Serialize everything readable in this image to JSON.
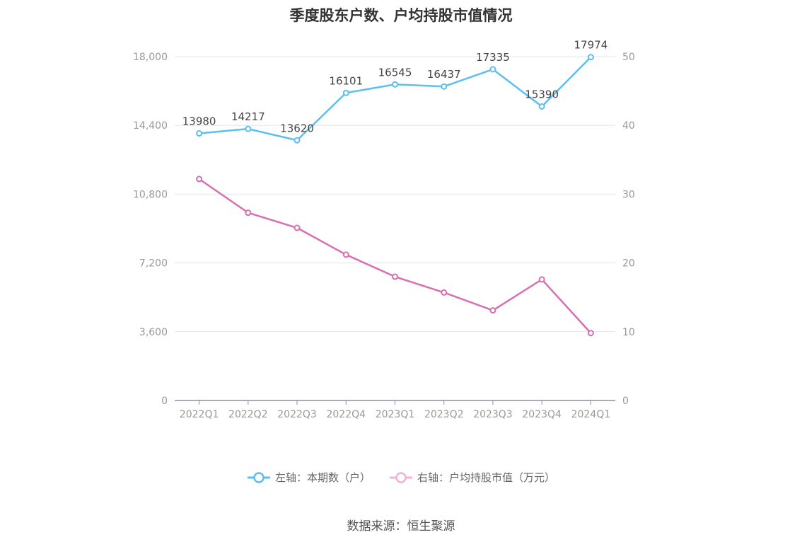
{
  "title": "季度股东户数、户均持股市值情况",
  "legend": {
    "left_label": "左轴：本期数（户）",
    "right_label": "右轴：户均持股市值（万元）"
  },
  "source": "数据来源：恒生聚源",
  "colors": {
    "left_series": "#5bbfef",
    "right_series": "#d86fb1",
    "right_legend": "#eeb3d6",
    "grid": "#e3e6f0",
    "axis": "#8e8ea8",
    "tick_text": "#999999",
    "data_label": "#444444"
  },
  "chart_data": {
    "type": "line",
    "categories": [
      "2022Q1",
      "2022Q2",
      "2022Q3",
      "2022Q4",
      "2023Q1",
      "2023Q2",
      "2023Q3",
      "2023Q4",
      "2024Q1"
    ],
    "series": [
      {
        "name": "左轴：本期数（户）",
        "axis": "left",
        "values": [
          13980,
          14217,
          13620,
          16101,
          16545,
          16437,
          17335,
          15390,
          17974
        ],
        "data_labels": true
      },
      {
        "name": "右轴：户均持股市值（万元）",
        "axis": "right",
        "values": [
          32.2,
          27.3,
          25.1,
          21.2,
          18.0,
          15.7,
          13.1,
          17.6,
          9.8
        ],
        "data_labels": false
      }
    ],
    "y_left": {
      "min": 0,
      "max": 18000,
      "ticks": [
        0,
        3600,
        7200,
        10800,
        14400,
        18000
      ],
      "tick_labels": [
        "0",
        "3,600",
        "7,200",
        "10,800",
        "14,400",
        "18,000"
      ]
    },
    "y_right": {
      "min": 0,
      "max": 50,
      "ticks": [
        0,
        10,
        20,
        30,
        40,
        50
      ],
      "tick_labels": [
        "0",
        "10",
        "20",
        "30",
        "40",
        "50"
      ]
    },
    "grid": true,
    "legend_position": "bottom"
  }
}
